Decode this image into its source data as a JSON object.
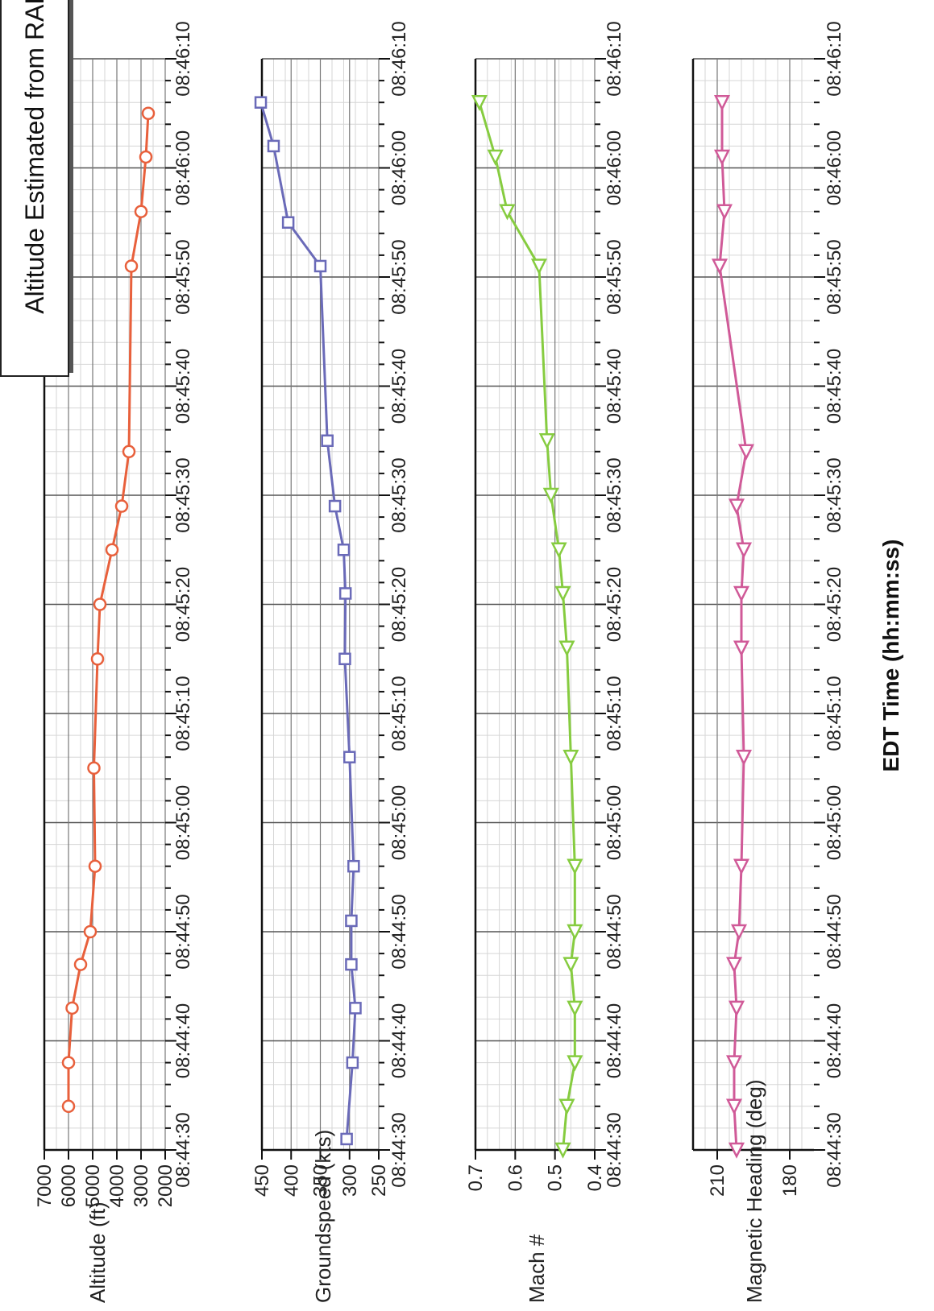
{
  "title": "Altitude Estimated from RADES Height Calcuations",
  "xlabel": "EDT Time (hh:mm:ss)",
  "x_tick_labels": [
    "08:44:30",
    "08:44:40",
    "08:44:50",
    "08:45:00",
    "08:45:10",
    "08:45:20",
    "08:45:30",
    "08:45:40",
    "08:45:50",
    "08:46:00",
    "08:46:10"
  ],
  "chart_data": [
    {
      "type": "line",
      "ylabel": "Altitude (ft)",
      "ylim": [
        2000,
        7000
      ],
      "y_ticks": [
        2000,
        3000,
        4000,
        5000,
        6000,
        7000
      ],
      "y_tick_labels": [
        "2000",
        "3000",
        "4000",
        "5000",
        "6000",
        "7000"
      ],
      "color": "#e8603c",
      "marker": "circle",
      "x": [
        "08:44:34",
        "08:44:38",
        "08:44:43",
        "08:44:47",
        "08:44:50",
        "08:44:56",
        "08:45:05",
        "08:45:15",
        "08:45:20",
        "08:45:25",
        "08:45:29",
        "08:45:34",
        "08:45:51",
        "08:45:56",
        "08:46:01",
        "08:46:05"
      ],
      "y": [
        6000,
        6000,
        5850,
        5500,
        5100,
        4900,
        4950,
        4800,
        4700,
        4200,
        3800,
        3500,
        3400,
        3000,
        2800,
        2700
      ]
    },
    {
      "type": "line",
      "ylabel": "Groundspeed (kts)",
      "ylim": [
        250,
        450
      ],
      "y_ticks": [
        250,
        300,
        350,
        400,
        450
      ],
      "y_tick_labels": [
        "250",
        "300",
        "350",
        "400",
        "450"
      ],
      "color": "#6a6ab8",
      "marker": "square",
      "x": [
        "08:44:31",
        "08:44:38",
        "08:44:43",
        "08:44:47",
        "08:44:51",
        "08:44:56",
        "08:45:06",
        "08:45:15",
        "08:45:21",
        "08:45:25",
        "08:45:29",
        "08:45:35",
        "08:45:51",
        "08:45:55",
        "08:46:02",
        "08:46:06"
      ],
      "y": [
        305,
        295,
        290,
        297,
        297,
        293,
        300,
        308,
        307,
        310,
        325,
        338,
        350,
        405,
        430,
        452
      ]
    },
    {
      "type": "line",
      "ylabel": "Mach #",
      "ylim": [
        0.4,
        0.7
      ],
      "y_ticks": [
        0.4,
        0.5,
        0.6,
        0.7
      ],
      "y_tick_labels": [
        "0.4",
        "0.5",
        "0.6",
        "0.7"
      ],
      "color": "#86cc40",
      "marker": "triangle",
      "x": [
        "08:44:30",
        "08:44:34",
        "08:44:38",
        "08:44:43",
        "08:44:47",
        "08:44:50",
        "08:44:56",
        "08:45:06",
        "08:45:16",
        "08:45:21",
        "08:45:25",
        "08:45:30",
        "08:45:35",
        "08:45:51",
        "08:45:56",
        "08:46:01",
        "08:46:06"
      ],
      "y": [
        0.48,
        0.47,
        0.45,
        0.45,
        0.46,
        0.45,
        0.45,
        0.46,
        0.47,
        0.48,
        0.49,
        0.51,
        0.52,
        0.54,
        0.62,
        0.65,
        0.69
      ]
    },
    {
      "type": "line",
      "ylabel": "Magnetic Heading (deg)",
      "ylim": [
        170,
        220
      ],
      "y_ticks": [
        180,
        210
      ],
      "y_tick_labels": [
        "180",
        "210"
      ],
      "color": "#d05a98",
      "marker": "triangle",
      "x": [
        "08:44:30",
        "08:44:34",
        "08:44:38",
        "08:44:43",
        "08:44:47",
        "08:44:50",
        "08:44:56",
        "08:45:06",
        "08:45:16",
        "08:45:21",
        "08:45:25",
        "08:45:29",
        "08:45:34",
        "08:45:51",
        "08:45:56",
        "08:46:01",
        "08:46:06"
      ],
      "y": [
        202,
        203,
        203,
        202,
        203,
        201,
        200,
        199,
        200,
        200,
        199,
        202,
        198,
        209,
        207,
        208,
        208
      ]
    }
  ]
}
